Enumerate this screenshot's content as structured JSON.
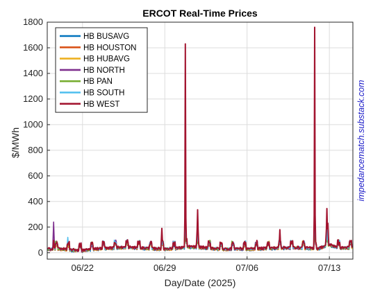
{
  "chart_data": {
    "type": "line",
    "title": "ERCOT Real-Time Prices",
    "xlabel": "Day/Date (2025)",
    "ylabel": "$/MWh",
    "ylim": [
      -50,
      1800
    ],
    "yticks": [
      0,
      200,
      400,
      600,
      800,
      1000,
      1200,
      1400,
      1600,
      1800
    ],
    "xlim": [
      "2025-06-19",
      "2025-07-15"
    ],
    "xticks": [
      "2025-06-22",
      "2025-06-29",
      "2025-07-06",
      "2025-07-13"
    ],
    "xticklabels": [
      "06/22",
      "06/29",
      "07/06",
      "07/13"
    ],
    "grid": true,
    "legend_position": "top-left",
    "watermark": "impedancematch.substack.com",
    "series": [
      {
        "name": "HB BUSAVG",
        "color": "#0072bd"
      },
      {
        "name": "HB HOUSTON",
        "color": "#d95319"
      },
      {
        "name": "HB HUBAVG",
        "color": "#edb120"
      },
      {
        "name": "HB NORTH",
        "color": "#7e2f8e"
      },
      {
        "name": "HB PAN",
        "color": "#77ac30"
      },
      {
        "name": "HB SOUTH",
        "color": "#4dbeee"
      },
      {
        "name": "HB WEST",
        "color": "#a2142f"
      }
    ],
    "baseline": {
      "x": [
        "2025-06-19",
        "2025-06-20",
        "2025-06-21",
        "2025-06-22",
        "2025-06-23",
        "2025-06-24",
        "2025-06-25",
        "2025-06-26",
        "2025-06-27",
        "2025-06-28",
        "2025-06-29",
        "2025-06-30",
        "2025-07-01",
        "2025-07-02",
        "2025-07-03",
        "2025-07-04",
        "2025-07-05",
        "2025-07-06",
        "2025-07-07",
        "2025-07-08",
        "2025-07-09",
        "2025-07-10",
        "2025-07-11",
        "2025-07-12",
        "2025-07-13",
        "2025-07-14",
        "2025-07-15"
      ],
      "y": [
        25,
        30,
        20,
        15,
        28,
        32,
        38,
        40,
        35,
        30,
        28,
        32,
        45,
        40,
        33,
        25,
        30,
        28,
        30,
        33,
        36,
        38,
        35,
        30,
        60,
        35,
        40
      ]
    },
    "spikes": [
      {
        "x": "2025-06-19T13:00",
        "y": 240,
        "series": "HB NORTH"
      },
      {
        "x": "2025-06-20T18:00",
        "y": 120,
        "series": "HB SOUTH"
      },
      {
        "x": "2025-06-28T18:00",
        "y": 190,
        "series": "HB WEST"
      },
      {
        "x": "2025-06-30T18:00",
        "y": 1630,
        "series": "HB WEST"
      },
      {
        "x": "2025-07-01T19:00",
        "y": 335,
        "series": "HB WEST"
      },
      {
        "x": "2025-07-08T19:00",
        "y": 180,
        "series": "HB WEST"
      },
      {
        "x": "2025-07-11T18:00",
        "y": 1760,
        "series": "HB WEST"
      },
      {
        "x": "2025-07-12T19:00",
        "y": 345,
        "series": "HB WEST"
      },
      {
        "x": "2025-07-12T21:00",
        "y": 230,
        "series": "HB WEST"
      }
    ]
  }
}
